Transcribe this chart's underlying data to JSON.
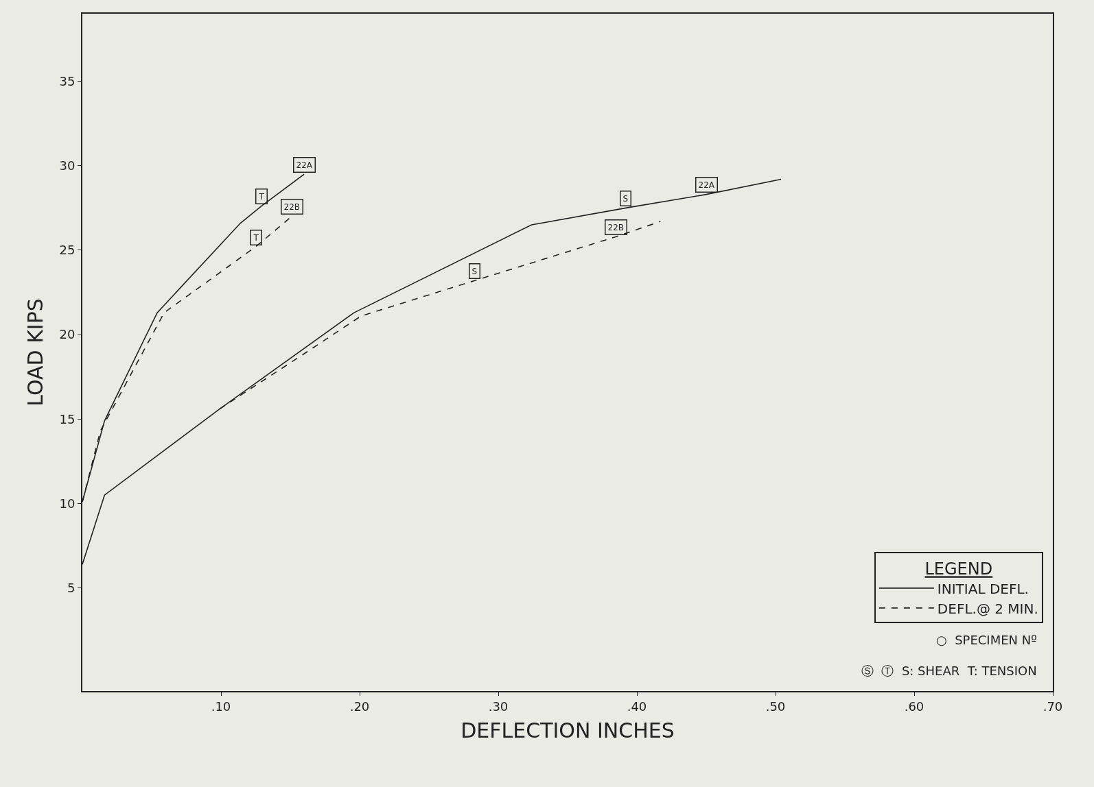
{
  "chart_data": {
    "type": "line",
    "xlabel": "DEFLECTION INCHES",
    "ylabel": "LOAD KIPS",
    "legend_title": "LEGEND",
    "series": [
      {
        "name": "INITIAL DEFL.",
        "color": "#222222",
        "line_style": "solid",
        "x": [
          0,
          0.016,
          0.054,
          0.114,
          0.129,
          0.16,
          null,
          0,
          0.016,
          0.099,
          0.196,
          0.324,
          0.392,
          0.45,
          0.504
        ],
        "values": [
          10.1,
          14.9,
          21.3,
          26.6,
          27.6,
          29.5,
          null,
          6.4,
          10.5,
          15.6,
          21.3,
          26.5,
          27.5,
          28.3,
          29.2
        ]
      },
      {
        "name": "DEFL.@ 2 MIN.",
        "color": "#222222",
        "line_style": "dashed",
        "x": [
          0,
          0.013,
          0.059,
          0.125,
          0.151,
          null,
          0.099,
          0.155,
          0.201,
          0.283,
          0.385,
          0.417
        ],
        "values": [
          10.1,
          14.3,
          21.3,
          25.2,
          27.0,
          null,
          15.6,
          18.6,
          21.1,
          23.2,
          25.8,
          26.7
        ]
      }
    ],
    "marker": "none",
    "xlim": [
      0,
      0.7
    ],
    "ylim": [
      -1.1,
      39
    ],
    "xticks": [
      {
        "value": 0.1,
        "label": ".10"
      },
      {
        "value": 0.2,
        "label": ".20"
      },
      {
        "value": 0.3,
        "label": ".30"
      },
      {
        "value": 0.4,
        "label": ".40"
      },
      {
        "value": 0.5,
        "label": ".50"
      },
      {
        "value": 0.6,
        "label": ".60"
      },
      {
        "value": 0.7,
        "label": ".70"
      }
    ],
    "yticks": [
      5,
      10,
      15,
      20,
      25,
      30,
      35
    ],
    "grid": false,
    "legend": "bottom right",
    "annotations": [
      {
        "text": "22A",
        "x": 0.16,
        "y": 29.5
      },
      {
        "text": "22B",
        "x": 0.151,
        "y": 27.0
      },
      {
        "text": "T",
        "x": 0.129,
        "y": 27.6
      },
      {
        "text": "T",
        "x": 0.125,
        "y": 25.2
      },
      {
        "text": "22A",
        "x": 0.45,
        "y": 28.3
      },
      {
        "text": "22B",
        "x": 0.385,
        "y": 25.8
      },
      {
        "text": "S",
        "x": 0.392,
        "y": 27.5
      },
      {
        "text": "S",
        "x": 0.283,
        "y": 23.2
      },
      "○  SPECIMEN Nº",
      "Ⓢ  Ⓣ  S: SHEAR  T: TENSION"
    ]
  }
}
